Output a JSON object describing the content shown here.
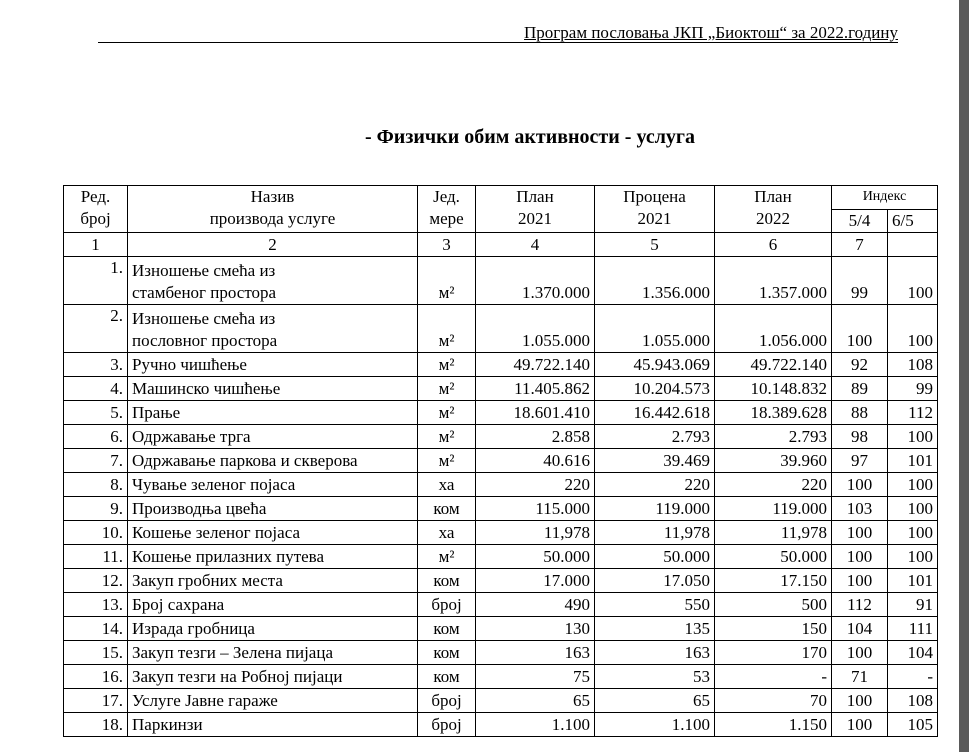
{
  "header": {
    "text": "Програм пословања ЈКП „Биоктош“ за 2022.годину"
  },
  "title": "-    Физички обим активности - услуга",
  "table": {
    "columns": {
      "no": [
        "Ред.",
        "број"
      ],
      "name": [
        "Назив",
        "производа услуге"
      ],
      "unit": [
        "Јед.",
        "мере"
      ],
      "plan2021": [
        "План",
        "2021"
      ],
      "est2021": [
        "Процена",
        "2021"
      ],
      "plan2022": [
        "План",
        "2022"
      ],
      "index": "Индекс",
      "index_54": "5/4",
      "index_65": "6/5"
    },
    "column_numbers": [
      "1",
      "2",
      "3",
      "4",
      "5",
      "6",
      "7"
    ],
    "rows": [
      {
        "no": "1.",
        "name": [
          "Изношење смећа из",
          "стамбеног простора"
        ],
        "unit": "м²",
        "plan2021": "1.370.000",
        "est2021": "1.356.000",
        "plan2022": "1.357.000",
        "i54": "99",
        "i65": "100"
      },
      {
        "no": "2.",
        "name": [
          "Изношење смећа из",
          "пословног простора"
        ],
        "unit": "м²",
        "plan2021": "1.055.000",
        "est2021": "1.055.000",
        "plan2022": "1.056.000",
        "i54": "100",
        "i65": "100"
      },
      {
        "no": "3.",
        "name": "Ручно чишћење",
        "unit": "м²",
        "plan2021": "49.722.140",
        "est2021": "45.943.069",
        "plan2022": "49.722.140",
        "i54": "92",
        "i65": "108"
      },
      {
        "no": "4.",
        "name": "Машинско чишћење",
        "unit": "м²",
        "plan2021": "11.405.862",
        "est2021": "10.204.573",
        "plan2022": "10.148.832",
        "i54": "89",
        "i65": "99"
      },
      {
        "no": "5.",
        "name": "Прање",
        "unit": "м²",
        "plan2021": "18.601.410",
        "est2021": "16.442.618",
        "plan2022": "18.389.628",
        "i54": "88",
        "i65": "112"
      },
      {
        "no": "6.",
        "name": "Одржавање трга",
        "unit": "м²",
        "plan2021": "2.858",
        "est2021": "2.793",
        "plan2022": "2.793",
        "i54": "98",
        "i65": "100"
      },
      {
        "no": "7.",
        "name": "Одржавање паркова и скверова",
        "unit": "м²",
        "plan2021": "40.616",
        "est2021": "39.469",
        "plan2022": "39.960",
        "i54": "97",
        "i65": "101"
      },
      {
        "no": "8.",
        "name": "Чување зеленог појаса",
        "unit": "ха",
        "plan2021": "220",
        "est2021": "220",
        "plan2022": "220",
        "i54": "100",
        "i65": "100"
      },
      {
        "no": "9.",
        "name": "Производња цвећа",
        "unit": "ком",
        "plan2021": "115.000",
        "est2021": "119.000",
        "plan2022": "119.000",
        "i54": "103",
        "i65": "100"
      },
      {
        "no": "10.",
        "name": "Кошење зеленог појаса",
        "unit": "ха",
        "plan2021": "11,978",
        "est2021": "11,978",
        "plan2022": "11,978",
        "i54": "100",
        "i65": "100"
      },
      {
        "no": "11.",
        "name": "Кошење прилазних путева",
        "unit": "м²",
        "plan2021": "50.000",
        "est2021": "50.000",
        "plan2022": "50.000",
        "i54": "100",
        "i65": "100"
      },
      {
        "no": "12.",
        "name": "Закуп гробних места",
        "unit": "ком",
        "plan2021": "17.000",
        "est2021": "17.050",
        "plan2022": "17.150",
        "i54": "100",
        "i65": "101"
      },
      {
        "no": "13.",
        "name": "Број сахрана",
        "unit": "број",
        "plan2021": "490",
        "est2021": "550",
        "plan2022": "500",
        "i54": "112",
        "i65": "91"
      },
      {
        "no": "14.",
        "name": "Израда гробница",
        "unit": "ком",
        "plan2021": "130",
        "est2021": "135",
        "plan2022": "150",
        "i54": "104",
        "i65": "111"
      },
      {
        "no": "15.",
        "name": "Закуп тезги – Зелена пијаца",
        "unit": "ком",
        "plan2021": "163",
        "est2021": "163",
        "plan2022": "170",
        "i54": "100",
        "i65": "104"
      },
      {
        "no": "16.",
        "name": "Закуп тезги на Робној пијаци",
        "unit": "ком",
        "plan2021": "75",
        "est2021": "53",
        "plan2022": "-",
        "i54": "71",
        "i65": "-"
      },
      {
        "no": "17.",
        "name": "Услуге Јавне гараже",
        "unit": "број",
        "plan2021": "65",
        "est2021": "65",
        "plan2022": "70",
        "i54": "100",
        "i65": "108"
      },
      {
        "no": "18.",
        "name": "Паркинзи",
        "unit": "број",
        "plan2021": "1.100",
        "est2021": "1.100",
        "plan2022": "1.150",
        "i54": "100",
        "i65": "105"
      }
    ]
  }
}
